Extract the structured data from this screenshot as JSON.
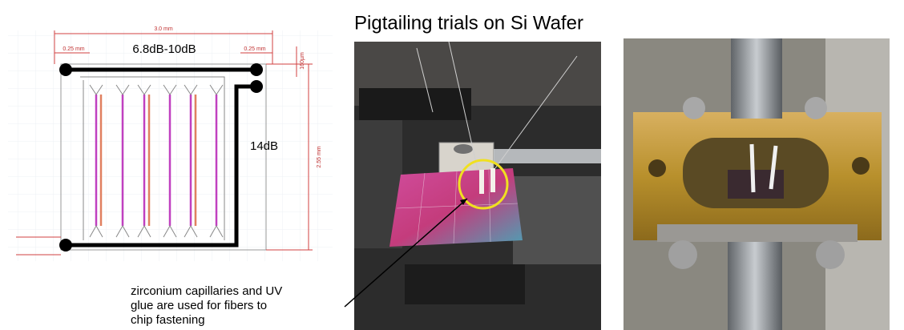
{
  "title": "Pigtailing trials on Si Wafer",
  "diagram": {
    "width_label": "3.0 mm",
    "margin_left": "0.25 mm",
    "margin_right": "0.25 mm",
    "height_label": "2.55 mm",
    "offset_label": "160µm",
    "loss_top": "6.8dB-10dB",
    "loss_right": "14dB"
  },
  "caption": [
    "zirconium capillaries and UV",
    "glue are used for fibers to",
    "chip fastening"
  ]
}
